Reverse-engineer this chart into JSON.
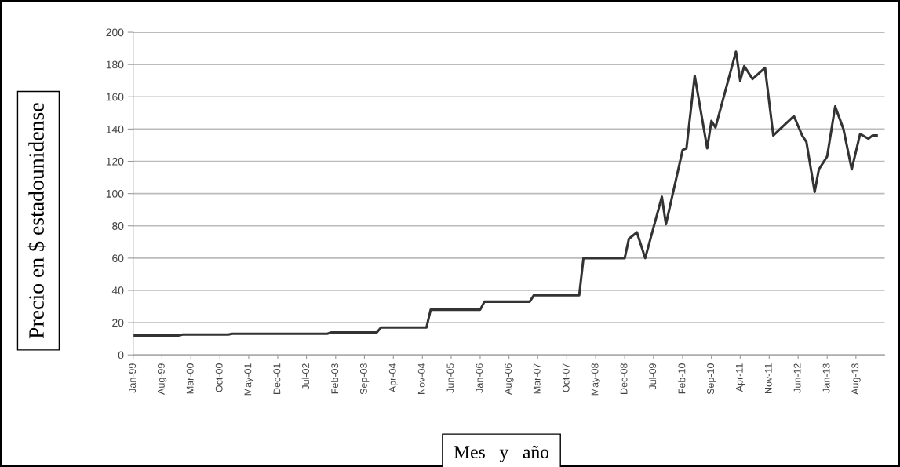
{
  "chart_data": {
    "type": "line",
    "xlabel": "Mes   y   año",
    "ylabel": "Precio en $ estadounidense",
    "x": [
      "1999-01",
      "1999-12",
      "2000-01",
      "2000-12",
      "2001-01",
      "2002-12",
      "2003-01",
      "2003-12",
      "2004-01",
      "2004-12",
      "2005-01",
      "2006-01",
      "2006-02",
      "2007-01",
      "2007-02",
      "2008-01",
      "2008-02",
      "2008-12",
      "2009-01",
      "2009-03",
      "2009-05",
      "2009-09",
      "2009-10",
      "2010-02",
      "2010-03",
      "2010-05",
      "2010-08",
      "2010-09",
      "2010-10",
      "2011-03",
      "2011-04",
      "2011-05",
      "2011-07",
      "2011-10",
      "2011-12",
      "2012-02",
      "2012-05",
      "2012-07",
      "2012-08",
      "2012-10",
      "2012-11",
      "2013-01",
      "2013-03",
      "2013-05",
      "2013-07",
      "2013-09",
      "2013-11",
      "2013-12",
      "2014-01"
    ],
    "series": [
      {
        "color": "#333333",
        "values": [
          12,
          12,
          12.6,
          12.6,
          13.1,
          13.1,
          14,
          14,
          17,
          17,
          28,
          28,
          33,
          33,
          37,
          37,
          60,
          60,
          72,
          76,
          60,
          98,
          81,
          127,
          128,
          173,
          128,
          145,
          141,
          188,
          170,
          179,
          171,
          178,
          136,
          141,
          148,
          136,
          132,
          101,
          115,
          123,
          154,
          140,
          115,
          137,
          134,
          136,
          136
        ]
      }
    ],
    "xlim": [
      "1999-01",
      "2014-03"
    ],
    "xticks": [
      {
        "value": "1999-01",
        "label": "Jan-99"
      },
      {
        "value": "1999-08",
        "label": "Aug-99"
      },
      {
        "value": "2000-03",
        "label": "Mar-00"
      },
      {
        "value": "2000-10",
        "label": "Oct-00"
      },
      {
        "value": "2001-05",
        "label": "May-01"
      },
      {
        "value": "2001-12",
        "label": "Dec-01"
      },
      {
        "value": "2002-07",
        "label": "Jul-02"
      },
      {
        "value": "2003-02",
        "label": "Feb-03"
      },
      {
        "value": "2003-09",
        "label": "Sep-03"
      },
      {
        "value": "2004-04",
        "label": "Apr-04"
      },
      {
        "value": "2004-11",
        "label": "Nov-04"
      },
      {
        "value": "2005-06",
        "label": "Jun-05"
      },
      {
        "value": "2006-01",
        "label": "Jan-06"
      },
      {
        "value": "2006-08",
        "label": "Aug-06"
      },
      {
        "value": "2007-03",
        "label": "Mar-07"
      },
      {
        "value": "2007-10",
        "label": "Oct-07"
      },
      {
        "value": "2008-05",
        "label": "May-08"
      },
      {
        "value": "2008-12",
        "label": "Dec-08"
      },
      {
        "value": "2009-07",
        "label": "Jul-09"
      },
      {
        "value": "2010-02",
        "label": "Feb-10"
      },
      {
        "value": "2010-09",
        "label": "Sep-10"
      },
      {
        "value": "2011-04",
        "label": "Apr-11"
      },
      {
        "value": "2011-11",
        "label": "Nov-11"
      },
      {
        "value": "2012-06",
        "label": "Jun-12"
      },
      {
        "value": "2013-01",
        "label": "Jan-13"
      },
      {
        "value": "2013-08",
        "label": "Aug-13"
      }
    ],
    "ylim": [
      0,
      200
    ],
    "yticks": [
      0,
      20,
      40,
      60,
      80,
      100,
      120,
      140,
      160,
      180,
      200
    ],
    "grid": "y",
    "legend": false,
    "marker": "none",
    "line_style": "solid"
  }
}
